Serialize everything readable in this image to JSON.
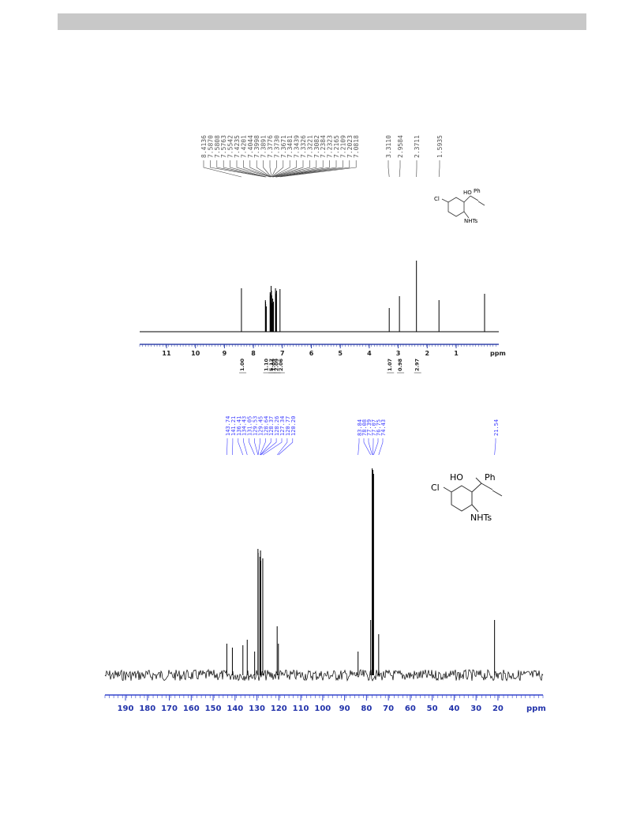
{
  "h_nmr": {
    "peak_labels": [
      "8.4136",
      "7.5870",
      "7.5808",
      "7.5763",
      "7.5542",
      "7.4235",
      "7.4201",
      "7.4044",
      "7.3998",
      "7.3891",
      "7.3776",
      "7.3730",
      "7.3671",
      "7.3481",
      "7.3439",
      "7.3326",
      "7.3221",
      "7.3082",
      "7.2384",
      "7.2323",
      "7.2165",
      "7.2109",
      "7.2023",
      "7.0818",
      "3.3110",
      "2.9584",
      "2.3711",
      "1.5935"
    ],
    "axis_ticks": [
      "11",
      "10",
      "9",
      "8",
      "7",
      "6",
      "5",
      "4",
      "3",
      "2",
      "1"
    ],
    "axis_unit": "ppm",
    "integrals": [
      "1.00",
      "1.10",
      "5.17",
      "1.09",
      "2.09",
      "2.06",
      "1.07",
      "0.98",
      "2.97"
    ],
    "structure": {
      "hydroxyl": "HO",
      "phenyl": "Ph",
      "chloro": "Cl",
      "amide": "NHTs"
    }
  },
  "c_nmr": {
    "peak_labels": [
      "143.74",
      "141.21",
      "136.41",
      "134.43",
      "131.05",
      "129.53",
      "129.45",
      "128.64",
      "128.37",
      "128.26",
      "127.34",
      "120.77",
      "120.20",
      "83.84",
      "78.08",
      "77.39",
      "77.07",
      "76.75",
      "74.43",
      "21.54"
    ],
    "axis_ticks": [
      "190",
      "180",
      "170",
      "160",
      "150",
      "140",
      "130",
      "120",
      "110",
      "100",
      "90",
      "80",
      "70",
      "60",
      "50",
      "40",
      "30",
      "20"
    ],
    "axis_unit": "ppm",
    "structure": {
      "hydroxyl": "HO",
      "phenyl": "Ph",
      "chloro": "Cl",
      "amide": "NHTs"
    }
  }
}
